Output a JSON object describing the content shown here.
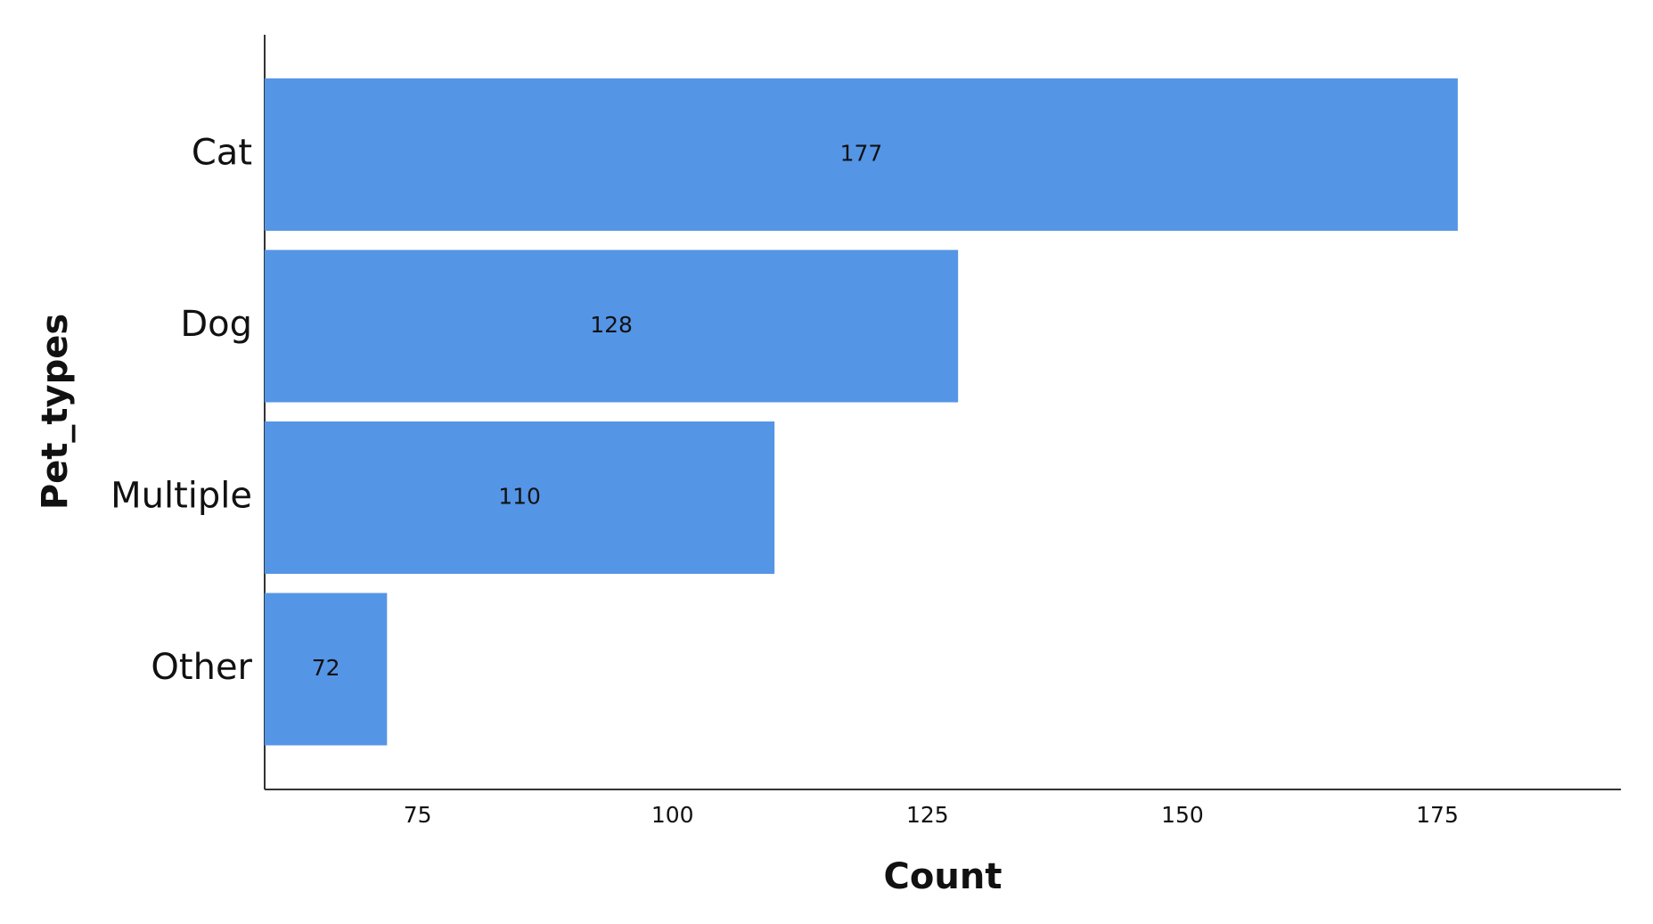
{
  "chart_data": {
    "type": "hbar",
    "x_label": "Count",
    "y_label": "Pet_types",
    "categories": [
      "Cat",
      "Dog",
      "Multiple",
      "Other"
    ],
    "values": [
      177,
      128,
      110,
      72
    ],
    "color": "#5595e6",
    "xlim": [
      60,
      193
    ],
    "xticks": [
      75,
      100,
      125,
      150,
      175
    ],
    "grid": false
  }
}
